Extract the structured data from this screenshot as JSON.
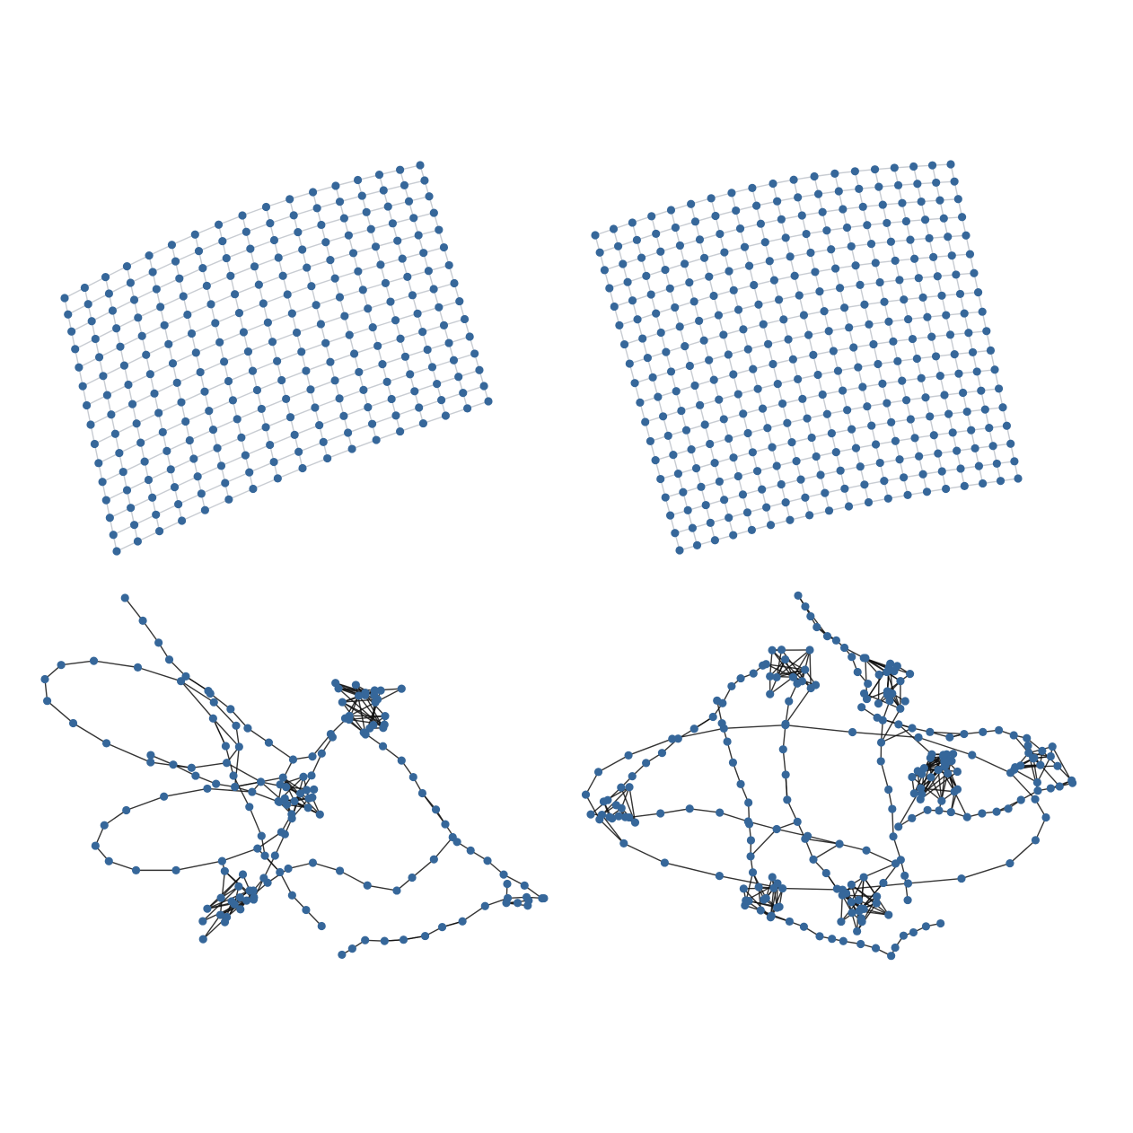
{
  "figure": {
    "background": "#ffffff",
    "node_color": "#36679a",
    "panels": [
      {
        "id": "top-left",
        "kind": "grid",
        "rows": 15,
        "cols": 17,
        "edge_color": "#c8ccd2",
        "corners": {
          "tl": [
            72,
            332
          ],
          "tr": [
            468,
            184
          ],
          "br": [
            544,
            447
          ],
          "bl": [
            130,
            614
          ]
        },
        "curve": 0.07
      },
      {
        "id": "top-right",
        "kind": "grid",
        "rows": 18,
        "cols": 19,
        "edge_color": "#c8ccd2",
        "corners": {
          "tl": [
            663,
            262
          ],
          "tr": [
            1059,
            183
          ],
          "br": [
            1134,
            533
          ],
          "bl": [
            757,
            613
          ]
        },
        "curve": 0.05
      },
      {
        "id": "bottom-left",
        "kind": "tangled",
        "edge_color": "#111111",
        "seed": 17
      },
      {
        "id": "bottom-right",
        "kind": "tangled",
        "edge_color": "#111111",
        "seed": 42
      }
    ]
  }
}
